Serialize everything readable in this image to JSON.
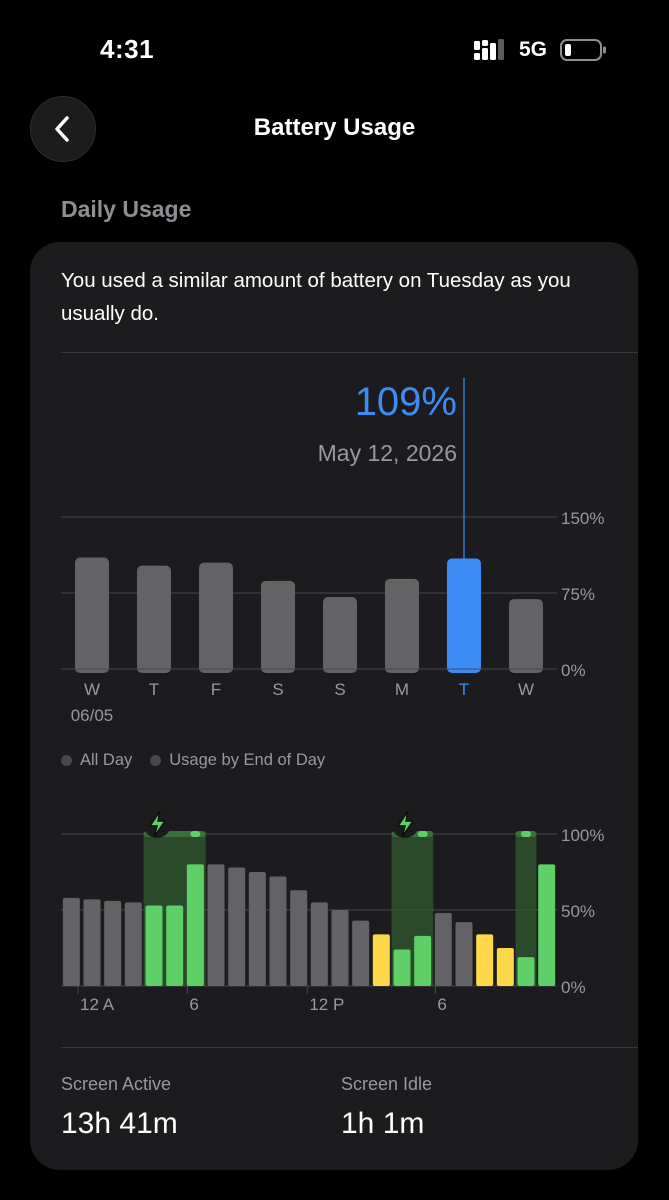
{
  "status_bar": {
    "time": "4:31",
    "network": "5G"
  },
  "nav": {
    "title": "Battery Usage"
  },
  "section": {
    "title": "Daily Usage"
  },
  "card": {
    "summary": "You used a similar amount of battery on Tuesday as you usually do.",
    "selected_value": "109%",
    "selected_date": "May 12, 2026",
    "legend": {
      "all_day": "All Day",
      "usage_eod": "Usage by End of Day"
    },
    "stats": {
      "screen_active_label": "Screen Active",
      "screen_active_value": "13h 41m",
      "screen_idle_label": "Screen Idle",
      "screen_idle_value": "1h 1m"
    }
  },
  "colors": {
    "accent": "#3d8cf5",
    "bar": "#636366",
    "charge": "#5fd068",
    "low": "#ffd84a"
  },
  "chart_data": [
    {
      "type": "bar",
      "categories": [
        "W",
        "T",
        "F",
        "S",
        "S",
        "M",
        "T",
        "W"
      ],
      "sub_label": "06/05",
      "values": [
        110,
        102,
        105,
        87,
        71,
        89,
        109,
        69
      ],
      "selected_index": 6,
      "y_tick_labels": [
        "150%",
        "75%",
        "0%"
      ],
      "ylim": [
        0,
        150
      ]
    },
    {
      "type": "bar",
      "x_tick_labels": [
        "12 A",
        "6",
        "12 P",
        "6"
      ],
      "y_tick_labels": [
        "100%",
        "50%",
        "0%"
      ],
      "ylim": [
        0,
        100
      ],
      "values": [
        58,
        57,
        56,
        55,
        53,
        53,
        80,
        80,
        78,
        75,
        72,
        63,
        55,
        50,
        43,
        34,
        24,
        33,
        48,
        42,
        34,
        25,
        19,
        80
      ],
      "states": [
        "idle",
        "idle",
        "idle",
        "idle",
        "charging",
        "charging",
        "charging",
        "idle",
        "idle",
        "idle",
        "idle",
        "idle",
        "idle",
        "idle",
        "idle",
        "low",
        "charging",
        "charging",
        "idle",
        "idle",
        "low",
        "low",
        "charging",
        "charging"
      ],
      "charging_periods": [
        [
          4,
          6
        ],
        [
          16,
          17
        ],
        [
          22,
          22
        ]
      ]
    }
  ]
}
